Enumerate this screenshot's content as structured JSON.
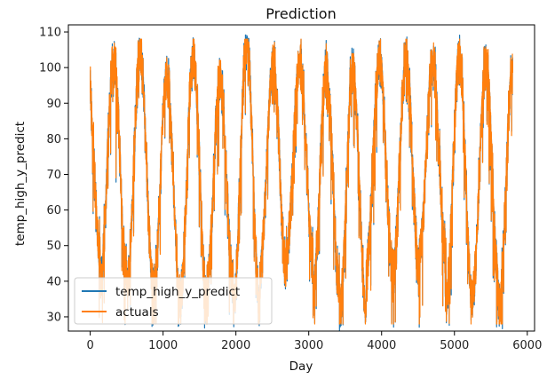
{
  "chart_data": {
    "type": "line",
    "title": "Prediction",
    "xlabel": "Day",
    "ylabel": "temp_high_y_predict",
    "xlim": [
      -300,
      6100
    ],
    "ylim": [
      26,
      112
    ],
    "xticks": [
      0,
      1000,
      2000,
      3000,
      4000,
      5000,
      6000
    ],
    "yticks": [
      30,
      40,
      50,
      60,
      70,
      80,
      90,
      100,
      110
    ],
    "xtick_labels": [
      "0",
      "1000",
      "2000",
      "3000",
      "4000",
      "5000",
      "6000"
    ],
    "ytick_labels": [
      "30",
      "40",
      "50",
      "60",
      "70",
      "80",
      "90",
      "100",
      "110"
    ],
    "grid": false,
    "legend_position": "lower-left",
    "series": [
      {
        "name": "temp_high_y_predict",
        "color": "#1f77b4",
        "x_range": [
          0,
          5800
        ],
        "period_days": 365,
        "min_approx": 28,
        "max_approx": 108,
        "summer_high_approx": [
          95,
          107
        ],
        "winter_low_approx": [
          30,
          50
        ]
      },
      {
        "name": "actuals",
        "color": "#ff7f0e",
        "x_range": [
          0,
          5800
        ],
        "period_days": 365,
        "min_approx": 28,
        "max_approx": 108,
        "summer_high_approx": [
          95,
          107
        ],
        "winter_low_approx": [
          30,
          50
        ]
      }
    ]
  }
}
